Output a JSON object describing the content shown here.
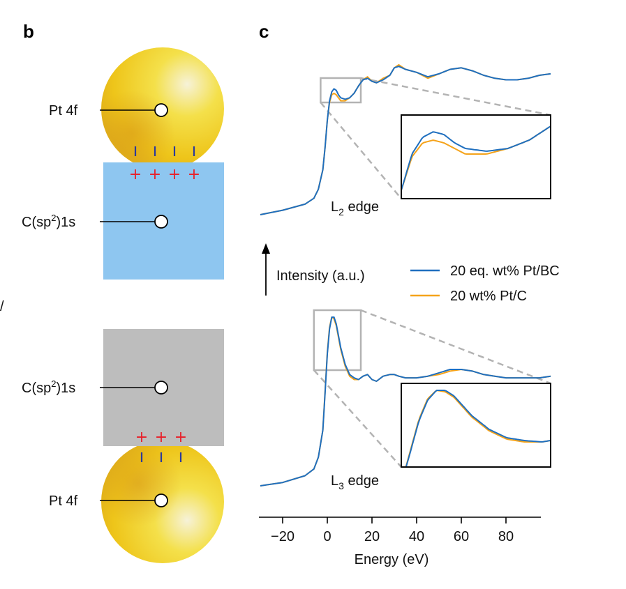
{
  "panels": {
    "b": "b",
    "c": "c",
    "edge_mark": "/"
  },
  "diagram_b": {
    "top": {
      "metal_label": "Pt 4f",
      "support_label_main": "C(sp",
      "support_label_sup": "2",
      "support_label_end": ")1s",
      "support_color": "#8ec6f0",
      "minus_count": 4,
      "plus_count": 4,
      "plus_symbol": "+"
    },
    "bottom": {
      "metal_label": "Pt 4f",
      "support_label_main": "C(sp",
      "support_label_sup": "2",
      "support_label_end": ")1s",
      "support_color": "#bdbdbd",
      "minus_count": 3,
      "plus_count": 3,
      "plus_symbol": "+"
    },
    "metal_color": "#f3d31f",
    "charge_minus_color": "#2b3a9c",
    "charge_plus_color": "#e8202a"
  },
  "chart_data": {
    "type": "line",
    "xlabel": "Energy (eV)",
    "ylabel": "Intensity (a.u.)",
    "xlim": [
      -30,
      100
    ],
    "xticks": [
      -20,
      0,
      20,
      40,
      60,
      80
    ],
    "x": [
      -30,
      -20,
      -10,
      -6,
      -4,
      -2,
      -1,
      0,
      1,
      2,
      3,
      4,
      5,
      6,
      8,
      10,
      12,
      14,
      16,
      18,
      20,
      22,
      25,
      28,
      30,
      32,
      35,
      40,
      45,
      50,
      55,
      60,
      65,
      70,
      75,
      80,
      85,
      90,
      95,
      100
    ],
    "legend": {
      "position": "center-right"
    },
    "series": [
      {
        "name": "20 eq. wt% Pt/BC",
        "color": "#1f6fbf",
        "L2": [
          0.0,
          0.03,
          0.07,
          0.11,
          0.17,
          0.3,
          0.45,
          0.63,
          0.76,
          0.82,
          0.84,
          0.83,
          0.8,
          0.78,
          0.77,
          0.78,
          0.81,
          0.86,
          0.9,
          0.91,
          0.89,
          0.88,
          0.9,
          0.93,
          0.98,
          0.99,
          0.97,
          0.95,
          0.92,
          0.94,
          0.97,
          0.98,
          0.96,
          0.93,
          0.91,
          0.9,
          0.9,
          0.91,
          0.93,
          0.94
        ],
        "L3": [
          0.0,
          0.02,
          0.06,
          0.1,
          0.17,
          0.33,
          0.55,
          0.78,
          0.93,
          1.0,
          1.0,
          0.96,
          0.89,
          0.82,
          0.72,
          0.66,
          0.64,
          0.63,
          0.65,
          0.66,
          0.63,
          0.62,
          0.65,
          0.66,
          0.66,
          0.65,
          0.64,
          0.64,
          0.65,
          0.67,
          0.69,
          0.69,
          0.68,
          0.66,
          0.65,
          0.64,
          0.64,
          0.64,
          0.64,
          0.65
        ]
      },
      {
        "name": "20 wt% Pt/C",
        "color": "#f5a31a",
        "L2": [
          0.0,
          0.03,
          0.07,
          0.11,
          0.17,
          0.3,
          0.45,
          0.63,
          0.75,
          0.8,
          0.81,
          0.8,
          0.78,
          0.76,
          0.76,
          0.78,
          0.81,
          0.86,
          0.9,
          0.92,
          0.89,
          0.88,
          0.91,
          0.93,
          0.98,
          1.0,
          0.97,
          0.95,
          0.91,
          0.94,
          0.97,
          0.98,
          0.96,
          0.93,
          0.91,
          0.9,
          0.9,
          0.91,
          0.93,
          0.94
        ],
        "L3": [
          0.0,
          0.02,
          0.06,
          0.1,
          0.17,
          0.33,
          0.56,
          0.79,
          0.94,
          1.0,
          0.99,
          0.95,
          0.88,
          0.81,
          0.71,
          0.65,
          0.63,
          0.63,
          0.65,
          0.66,
          0.63,
          0.62,
          0.65,
          0.66,
          0.66,
          0.65,
          0.64,
          0.64,
          0.65,
          0.66,
          0.68,
          0.69,
          0.68,
          0.66,
          0.65,
          0.64,
          0.64,
          0.64,
          0.64,
          0.65
        ]
      }
    ],
    "annotations": {
      "L2_label_main": "L",
      "L2_label_sub": "2",
      "L2_label_end": " edge",
      "L3_label_main": "L",
      "L3_label_sub": "3",
      "L3_label_end": " edge"
    },
    "zoom_L2_xrange": [
      -3,
      15
    ],
    "zoom_L3_xrange": [
      -6,
      15
    ]
  }
}
